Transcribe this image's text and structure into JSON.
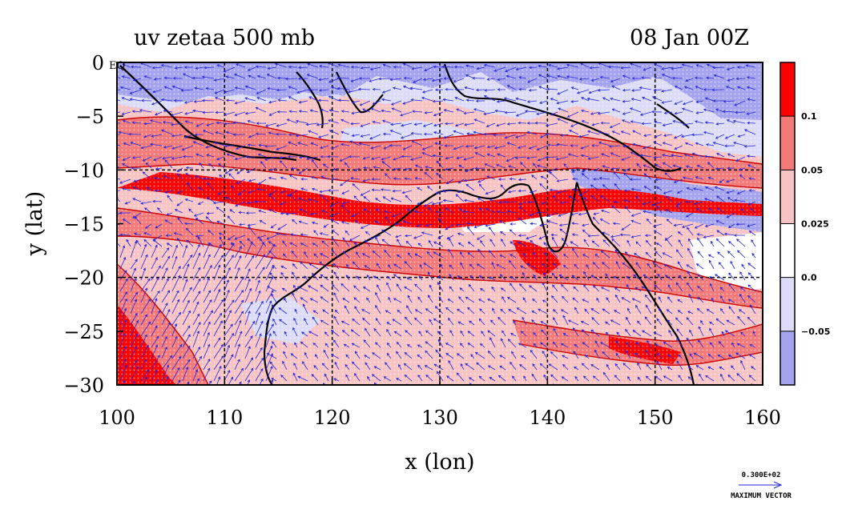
{
  "title_left": "uv zetaa 500 mb",
  "title_right": "08 Jan 00Z",
  "eq_label": "EQ",
  "x_axis": {
    "label": "x (lon)",
    "min": 100,
    "max": 160,
    "ticks": [
      "100",
      "110",
      "120",
      "130",
      "140",
      "150",
      "160"
    ]
  },
  "y_axis": {
    "label": "y (lat)",
    "min": -30,
    "max": 0,
    "ticks": [
      "0",
      "−5",
      "−10",
      "−15",
      "−20",
      "−25",
      "−30"
    ]
  },
  "colorbar": {
    "labels": [
      "0.1",
      "0.05",
      "0.025",
      "0.0",
      "−0.05"
    ],
    "colors": [
      "#ff0000",
      "#f47a7a",
      "#f7c3c3",
      "#ffffff",
      "#dcdcf8",
      "#a3a3f0"
    ]
  },
  "vector_key": {
    "value": "0.300E+02",
    "label": "MAXIMUM VECTOR"
  },
  "colors": {
    "vector": "#2424d8",
    "contour": "#cc0000",
    "coast": "#000000"
  }
}
